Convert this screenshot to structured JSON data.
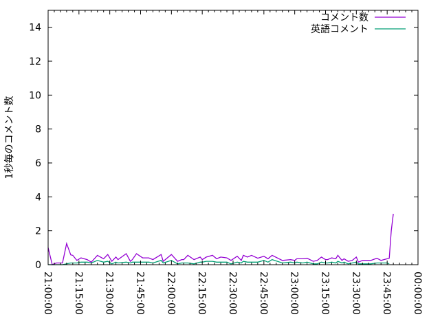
{
  "chart_data": {
    "type": "line",
    "title": "",
    "xlabel": "",
    "ylabel": "1秒毎のコメント数",
    "xlim": [
      "21:00:00",
      "00:00:00"
    ],
    "ylim": [
      0,
      15
    ],
    "x_ticks": [
      "21:00:00",
      "21:15:00",
      "21:30:00",
      "21:45:00",
      "22:00:00",
      "22:15:00",
      "22:30:00",
      "22:45:00",
      "23:00:00",
      "23:15:00",
      "23:30:00",
      "23:45:00",
      "00:00:00"
    ],
    "y_ticks": [
      "0",
      "2",
      "4",
      "6",
      "8",
      "10",
      "12",
      "14"
    ],
    "grid": false,
    "legend_position": "top-right",
    "x": [
      "21:00",
      "21:02",
      "21:04",
      "21:07",
      "21:09",
      "21:11",
      "21:12",
      "21:14",
      "21:16",
      "21:19",
      "21:21",
      "21:24",
      "21:27",
      "21:29",
      "21:31",
      "21:33",
      "21:34",
      "21:38",
      "21:40",
      "21:41",
      "21:43",
      "21:46",
      "21:49",
      "21:51",
      "21:55",
      "21:56",
      "22:00",
      "22:03",
      "22:05",
      "22:06",
      "22:08",
      "22:11",
      "22:14",
      "22:15",
      "22:17",
      "22:20",
      "22:22",
      "22:24",
      "22:27",
      "22:29",
      "22:32",
      "22:34",
      "22:35",
      "22:37",
      "22:39",
      "22:42",
      "22:45",
      "22:47",
      "22:49",
      "22:54",
      "22:58",
      "23:00",
      "23:01",
      "23:04",
      "23:06",
      "23:09",
      "23:11",
      "23:13",
      "23:15",
      "23:16",
      "23:18",
      "23:20",
      "23:21",
      "23:23",
      "23:24",
      "23:26",
      "23:28",
      "23:30",
      "23:31",
      "23:33",
      "23:37",
      "23:40",
      "23:42",
      "23:45",
      "23:46",
      "23:47",
      "23:48"
    ],
    "series": [
      {
        "name": "コメント数",
        "color": "#9400d3",
        "values": [
          1.0,
          0,
          0.1,
          0.1,
          1.25,
          0.58,
          0.55,
          0.25,
          0.4,
          0.3,
          0.15,
          0.55,
          0.35,
          0.6,
          0.2,
          0.45,
          0.3,
          0.65,
          0.2,
          0.3,
          0.65,
          0.4,
          0.4,
          0.3,
          0.6,
          0.2,
          0.6,
          0.2,
          0.3,
          0.3,
          0.55,
          0.3,
          0.45,
          0.3,
          0.45,
          0.55,
          0.35,
          0.45,
          0.4,
          0.25,
          0.5,
          0.25,
          0.55,
          0.45,
          0.55,
          0.38,
          0.5,
          0.35,
          0.55,
          0.25,
          0.3,
          0.25,
          0.35,
          0.35,
          0.38,
          0.2,
          0.25,
          0.45,
          0.3,
          0.3,
          0.4,
          0.35,
          0.55,
          0.25,
          0.35,
          0.2,
          0.25,
          0.45,
          0.15,
          0.25,
          0.25,
          0.38,
          0.25,
          0.35,
          0.38,
          2.0,
          3.0
        ]
      },
      {
        "name": "英語コメント",
        "color": "#009e73",
        "values": [
          0,
          0,
          0,
          0,
          0.05,
          0.1,
          0.1,
          0.1,
          0.15,
          0.15,
          0.1,
          0.25,
          0.15,
          0.2,
          0.05,
          0.15,
          0.1,
          0.15,
          0.1,
          0.15,
          0.15,
          0.15,
          0.15,
          0.1,
          0.25,
          0.1,
          0.25,
          0.05,
          0.1,
          0.1,
          0.1,
          0.05,
          0.15,
          0.15,
          0.2,
          0.2,
          0.15,
          0.15,
          0.15,
          0.05,
          0.15,
          0.1,
          0.2,
          0.15,
          0.15,
          0.15,
          0.25,
          0.15,
          0.3,
          0.1,
          0.15,
          0.1,
          0.15,
          0.1,
          0.15,
          0.05,
          0.05,
          0.15,
          0.1,
          0.1,
          0.15,
          0.1,
          0.2,
          0.1,
          0.15,
          0.05,
          0.1,
          0.15,
          0.05,
          0.05,
          0.05,
          0.1,
          0.1,
          0.1,
          0.05,
          null,
          null
        ]
      }
    ]
  }
}
